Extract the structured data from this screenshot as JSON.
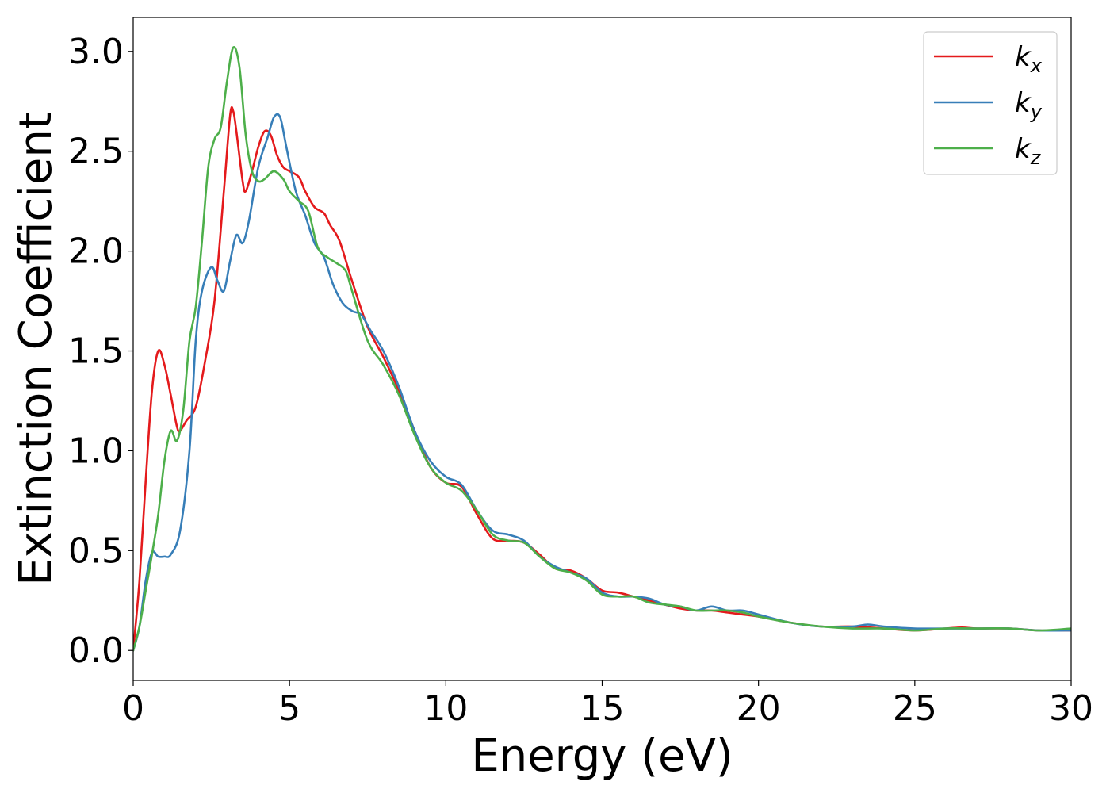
{
  "chart_data": {
    "type": "line",
    "title": "",
    "xlabel": "Energy (eV)",
    "ylabel": "Extinction Coefficient",
    "xlim": [
      0,
      30
    ],
    "ylim": [
      -0.15,
      3.17
    ],
    "xticks": [
      0,
      5,
      10,
      15,
      20,
      25,
      30
    ],
    "xtick_labels": [
      "0",
      "5",
      "10",
      "15",
      "20",
      "25",
      "30"
    ],
    "yticks": [
      0.0,
      0.5,
      1.0,
      1.5,
      2.0,
      2.5,
      3.0
    ],
    "ytick_labels": [
      "0.0",
      "0.5",
      "1.0",
      "1.5",
      "2.0",
      "2.5",
      "3.0"
    ],
    "grid": false,
    "legend_position": "top-right",
    "series": [
      {
        "name": "k",
        "subscript": "x",
        "color": "#e41a1c",
        "points": [
          [
            0,
            0.0
          ],
          [
            0.2,
            0.35
          ],
          [
            0.4,
            0.85
          ],
          [
            0.6,
            1.3
          ],
          [
            0.8,
            1.5
          ],
          [
            1.0,
            1.43
          ],
          [
            1.2,
            1.28
          ],
          [
            1.4,
            1.12
          ],
          [
            1.5,
            1.1
          ],
          [
            1.7,
            1.15
          ],
          [
            2.0,
            1.22
          ],
          [
            2.3,
            1.45
          ],
          [
            2.6,
            1.75
          ],
          [
            2.9,
            2.3
          ],
          [
            3.1,
            2.68
          ],
          [
            3.2,
            2.7
          ],
          [
            3.3,
            2.6
          ],
          [
            3.5,
            2.35
          ],
          [
            3.6,
            2.3
          ],
          [
            3.8,
            2.4
          ],
          [
            4.0,
            2.52
          ],
          [
            4.2,
            2.6
          ],
          [
            4.4,
            2.58
          ],
          [
            4.6,
            2.48
          ],
          [
            4.8,
            2.42
          ],
          [
            5.0,
            2.4
          ],
          [
            5.3,
            2.37
          ],
          [
            5.5,
            2.3
          ],
          [
            5.8,
            2.22
          ],
          [
            6.1,
            2.19
          ],
          [
            6.3,
            2.13
          ],
          [
            6.6,
            2.05
          ],
          [
            7.0,
            1.85
          ],
          [
            7.5,
            1.62
          ],
          [
            8.0,
            1.47
          ],
          [
            8.5,
            1.3
          ],
          [
            9.0,
            1.1
          ],
          [
            9.5,
            0.92
          ],
          [
            10.0,
            0.84
          ],
          [
            10.5,
            0.82
          ],
          [
            11.0,
            0.68
          ],
          [
            11.5,
            0.56
          ],
          [
            12.0,
            0.55
          ],
          [
            12.5,
            0.54
          ],
          [
            13.0,
            0.48
          ],
          [
            13.5,
            0.41
          ],
          [
            14.0,
            0.4
          ],
          [
            14.5,
            0.36
          ],
          [
            15.0,
            0.3
          ],
          [
            15.5,
            0.29
          ],
          [
            16.0,
            0.27
          ],
          [
            16.5,
            0.25
          ],
          [
            17.0,
            0.23
          ],
          [
            17.5,
            0.21
          ],
          [
            18.0,
            0.2
          ],
          [
            18.5,
            0.2
          ],
          [
            19.0,
            0.19
          ],
          [
            19.5,
            0.18
          ],
          [
            20.0,
            0.17
          ],
          [
            21.0,
            0.14
          ],
          [
            22.0,
            0.12
          ],
          [
            23.0,
            0.12
          ],
          [
            24.0,
            0.11
          ],
          [
            25.0,
            0.1
          ],
          [
            26.0,
            0.11
          ],
          [
            26.5,
            0.115
          ],
          [
            27.0,
            0.11
          ],
          [
            28.0,
            0.11
          ],
          [
            29.0,
            0.1
          ],
          [
            30.0,
            0.1
          ]
        ]
      },
      {
        "name": "k",
        "subscript": "y",
        "color": "#377eb8",
        "points": [
          [
            0,
            0.0
          ],
          [
            0.2,
            0.12
          ],
          [
            0.4,
            0.35
          ],
          [
            0.6,
            0.49
          ],
          [
            0.8,
            0.47
          ],
          [
            1.0,
            0.47
          ],
          [
            1.2,
            0.48
          ],
          [
            1.5,
            0.6
          ],
          [
            1.8,
            1.0
          ],
          [
            2.0,
            1.55
          ],
          [
            2.2,
            1.8
          ],
          [
            2.5,
            1.92
          ],
          [
            2.7,
            1.85
          ],
          [
            2.9,
            1.8
          ],
          [
            3.1,
            1.95
          ],
          [
            3.3,
            2.08
          ],
          [
            3.5,
            2.04
          ],
          [
            3.7,
            2.15
          ],
          [
            4.0,
            2.42
          ],
          [
            4.3,
            2.57
          ],
          [
            4.5,
            2.67
          ],
          [
            4.7,
            2.67
          ],
          [
            4.9,
            2.52
          ],
          [
            5.2,
            2.3
          ],
          [
            5.5,
            2.18
          ],
          [
            5.8,
            2.04
          ],
          [
            6.1,
            1.97
          ],
          [
            6.4,
            1.83
          ],
          [
            6.7,
            1.74
          ],
          [
            7.0,
            1.7
          ],
          [
            7.3,
            1.68
          ],
          [
            7.6,
            1.6
          ],
          [
            8.0,
            1.5
          ],
          [
            8.5,
            1.32
          ],
          [
            9.0,
            1.1
          ],
          [
            9.5,
            0.95
          ],
          [
            10.0,
            0.87
          ],
          [
            10.5,
            0.83
          ],
          [
            11.0,
            0.7
          ],
          [
            11.5,
            0.6
          ],
          [
            12.0,
            0.58
          ],
          [
            12.5,
            0.55
          ],
          [
            13.0,
            0.47
          ],
          [
            13.5,
            0.42
          ],
          [
            14.0,
            0.39
          ],
          [
            14.5,
            0.36
          ],
          [
            15.0,
            0.29
          ],
          [
            15.5,
            0.27
          ],
          [
            16.0,
            0.27
          ],
          [
            16.5,
            0.26
          ],
          [
            17.0,
            0.23
          ],
          [
            17.5,
            0.22
          ],
          [
            18.0,
            0.2
          ],
          [
            18.5,
            0.22
          ],
          [
            19.0,
            0.2
          ],
          [
            19.5,
            0.2
          ],
          [
            20.0,
            0.18
          ],
          [
            21.0,
            0.14
          ],
          [
            22.0,
            0.12
          ],
          [
            23.0,
            0.12
          ],
          [
            23.5,
            0.13
          ],
          [
            24.0,
            0.12
          ],
          [
            25.0,
            0.11
          ],
          [
            26.0,
            0.11
          ],
          [
            27.0,
            0.11
          ],
          [
            28.0,
            0.11
          ],
          [
            29.0,
            0.1
          ],
          [
            30.0,
            0.1
          ]
        ]
      },
      {
        "name": "k",
        "subscript": "z",
        "color": "#4daf4a",
        "points": [
          [
            0,
            0.0
          ],
          [
            0.2,
            0.12
          ],
          [
            0.4,
            0.3
          ],
          [
            0.6,
            0.48
          ],
          [
            0.8,
            0.68
          ],
          [
            1.0,
            0.95
          ],
          [
            1.2,
            1.1
          ],
          [
            1.4,
            1.05
          ],
          [
            1.6,
            1.2
          ],
          [
            1.8,
            1.55
          ],
          [
            2.0,
            1.72
          ],
          [
            2.2,
            2.05
          ],
          [
            2.4,
            2.42
          ],
          [
            2.6,
            2.56
          ],
          [
            2.8,
            2.62
          ],
          [
            3.0,
            2.85
          ],
          [
            3.2,
            3.02
          ],
          [
            3.4,
            2.92
          ],
          [
            3.6,
            2.58
          ],
          [
            3.8,
            2.4
          ],
          [
            4.0,
            2.35
          ],
          [
            4.2,
            2.36
          ],
          [
            4.5,
            2.4
          ],
          [
            4.8,
            2.36
          ],
          [
            5.0,
            2.3
          ],
          [
            5.3,
            2.25
          ],
          [
            5.6,
            2.2
          ],
          [
            5.9,
            2.02
          ],
          [
            6.2,
            1.97
          ],
          [
            6.5,
            1.94
          ],
          [
            6.8,
            1.9
          ],
          [
            7.0,
            1.8
          ],
          [
            7.5,
            1.55
          ],
          [
            8.0,
            1.43
          ],
          [
            8.5,
            1.28
          ],
          [
            9.0,
            1.08
          ],
          [
            9.5,
            0.92
          ],
          [
            10.0,
            0.84
          ],
          [
            10.5,
            0.8
          ],
          [
            11.0,
            0.7
          ],
          [
            11.5,
            0.58
          ],
          [
            12.0,
            0.55
          ],
          [
            12.5,
            0.54
          ],
          [
            13.0,
            0.47
          ],
          [
            13.5,
            0.41
          ],
          [
            14.0,
            0.39
          ],
          [
            14.5,
            0.35
          ],
          [
            15.0,
            0.28
          ],
          [
            15.5,
            0.27
          ],
          [
            16.0,
            0.27
          ],
          [
            16.5,
            0.24
          ],
          [
            17.0,
            0.23
          ],
          [
            17.5,
            0.22
          ],
          [
            18.0,
            0.2
          ],
          [
            18.5,
            0.2
          ],
          [
            19.0,
            0.2
          ],
          [
            19.5,
            0.19
          ],
          [
            20.0,
            0.17
          ],
          [
            21.0,
            0.14
          ],
          [
            22.0,
            0.12
          ],
          [
            23.0,
            0.11
          ],
          [
            24.0,
            0.11
          ],
          [
            25.0,
            0.1
          ],
          [
            26.0,
            0.11
          ],
          [
            27.0,
            0.11
          ],
          [
            28.0,
            0.11
          ],
          [
            29.0,
            0.1
          ],
          [
            30.0,
            0.11
          ]
        ]
      }
    ]
  }
}
